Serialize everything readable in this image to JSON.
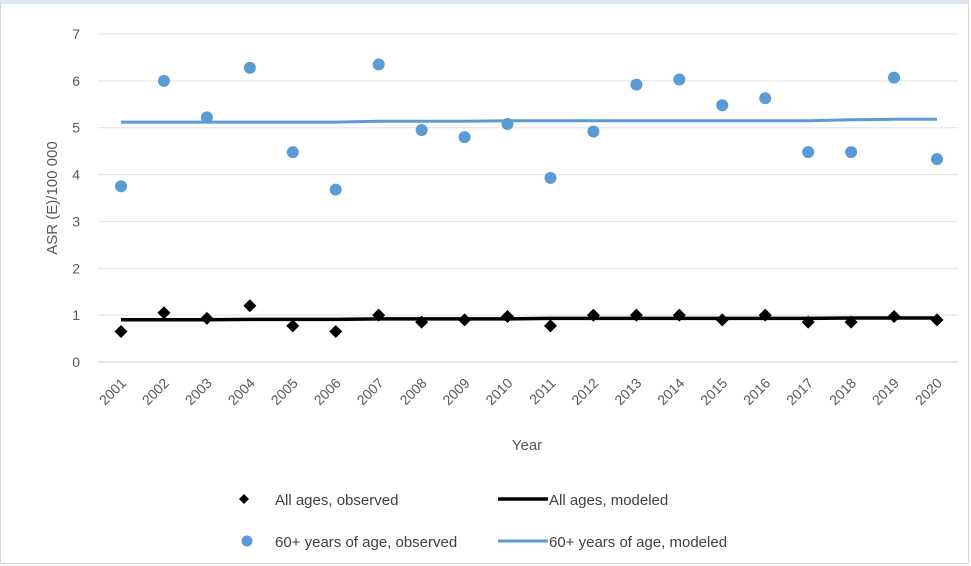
{
  "chart_data": {
    "type": "scatter",
    "xlabel": "Year",
    "ylabel": "ASR (E)/100 000",
    "ylim": [
      0,
      7
    ],
    "yticks": [
      0,
      1,
      2,
      3,
      4,
      5,
      6,
      7
    ],
    "categories": [
      "2001",
      "2002",
      "2003",
      "2004",
      "2005",
      "2006",
      "2007",
      "2008",
      "2009",
      "2010",
      "2011",
      "2012",
      "2013",
      "2014",
      "2015",
      "2016",
      "2017",
      "2018",
      "2019",
      "2020"
    ],
    "grid": "horizontal",
    "legend_position": "bottom",
    "series": [
      {
        "name": "All ages, observed",
        "kind": "markers",
        "marker": "diamond",
        "color": "#000000",
        "values": [
          0.65,
          1.05,
          0.93,
          1.2,
          0.77,
          0.65,
          1.0,
          0.85,
          0.9,
          0.97,
          0.77,
          1.0,
          1.0,
          1.0,
          0.9,
          1.0,
          0.85,
          0.85,
          0.97,
          0.9
        ]
      },
      {
        "name": "All ages, modeled",
        "kind": "line",
        "color": "#000000",
        "values": [
          0.9,
          0.9,
          0.9,
          0.91,
          0.91,
          0.91,
          0.92,
          0.92,
          0.92,
          0.92,
          0.93,
          0.93,
          0.93,
          0.93,
          0.93,
          0.93,
          0.93,
          0.94,
          0.94,
          0.94
        ]
      },
      {
        "name": "60+ years of age, observed",
        "kind": "markers",
        "marker": "circle",
        "color": "#5b9bd5",
        "values": [
          3.75,
          6.0,
          5.22,
          6.28,
          4.48,
          3.68,
          6.35,
          4.95,
          4.8,
          5.08,
          3.93,
          4.92,
          5.92,
          6.03,
          5.48,
          5.63,
          4.48,
          4.48,
          6.07,
          4.33
        ]
      },
      {
        "name": "60+ years of age, modeled",
        "kind": "line",
        "color": "#5b9bd5",
        "values": [
          5.12,
          5.12,
          5.12,
          5.12,
          5.12,
          5.12,
          5.14,
          5.14,
          5.14,
          5.15,
          5.15,
          5.15,
          5.15,
          5.15,
          5.15,
          5.15,
          5.15,
          5.17,
          5.18,
          5.18
        ]
      }
    ]
  },
  "legend": {
    "items": [
      {
        "label": "All ages, observed"
      },
      {
        "label": "All ages, modeled"
      },
      {
        "label": "60+ years of age, observed"
      },
      {
        "label": "60+ years of age, modeled"
      }
    ]
  }
}
